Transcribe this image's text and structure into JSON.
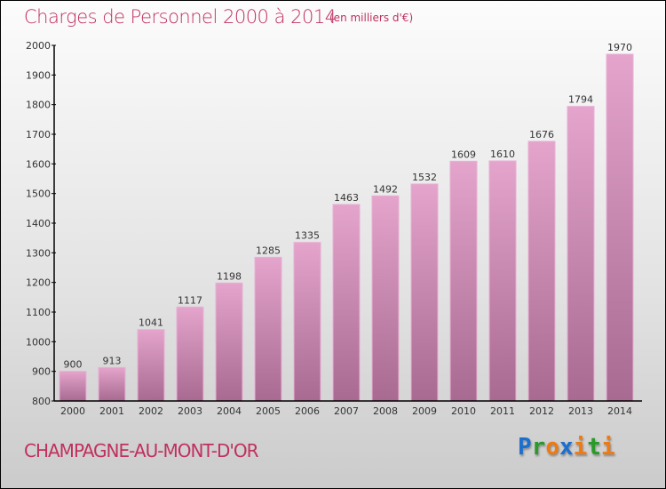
{
  "chart_data": {
    "type": "bar",
    "title": "Charges de Personnel 2000 à 2014",
    "subtitle": "(en milliers d'€)",
    "categories": [
      "2000",
      "2001",
      "2002",
      "2003",
      "2004",
      "2005",
      "2006",
      "2007",
      "2008",
      "2009",
      "2010",
      "2011",
      "2012",
      "2013",
      "2014"
    ],
    "values": [
      900,
      913,
      1041,
      1117,
      1198,
      1285,
      1335,
      1463,
      1492,
      1532,
      1609,
      1610,
      1676,
      1794,
      1970
    ],
    "ylim": [
      800,
      2000
    ],
    "yticks": [
      800,
      900,
      1000,
      1100,
      1200,
      1300,
      1400,
      1500,
      1600,
      1700,
      1800,
      1900,
      2000
    ],
    "xlabel": "",
    "ylabel": "",
    "bar_color_top": "#e4a4cc",
    "bar_color_bottom": "#a86a90"
  },
  "footer": {
    "city": "CHAMPAGNE-AU-MONT-D'OR",
    "logo": "Proxiti"
  }
}
